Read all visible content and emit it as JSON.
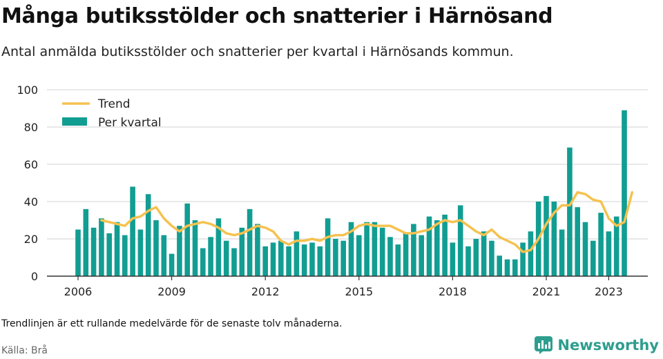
{
  "header": {
    "title": "Många butiksstölder och snatterier i Härnösand",
    "subtitle": "Antal anmälda butiksstölder och snatterier per kvartal i Härnösands kommun."
  },
  "footer": {
    "note": "Trendlinjen är ett rullande medelvärde för de senaste tolv månaderna.",
    "source": "Källa: Brå",
    "brand": "Newsworthy"
  },
  "colors": {
    "bar": "#129d92",
    "trend": "#f5c24f",
    "grid": "#d9d9d9",
    "text": "#222222"
  },
  "chart_data": {
    "type": "bar",
    "title": "",
    "xlabel": "",
    "ylabel": "",
    "ylim": [
      0,
      100
    ],
    "y_ticks": [
      0,
      20,
      40,
      60,
      80,
      100
    ],
    "x_ticks": [
      "2006",
      "2009",
      "2012",
      "2015",
      "2018",
      "2021",
      "2023"
    ],
    "legend_position": "top-left",
    "grid": true,
    "categories": [
      "2006 Q1",
      "2006 Q2",
      "2006 Q3",
      "2006 Q4",
      "2007 Q1",
      "2007 Q2",
      "2007 Q3",
      "2007 Q4",
      "2008 Q1",
      "2008 Q2",
      "2008 Q3",
      "2008 Q4",
      "2009 Q1",
      "2009 Q2",
      "2009 Q3",
      "2009 Q4",
      "2010 Q1",
      "2010 Q2",
      "2010 Q3",
      "2010 Q4",
      "2011 Q1",
      "2011 Q2",
      "2011 Q3",
      "2011 Q4",
      "2012 Q1",
      "2012 Q2",
      "2012 Q3",
      "2012 Q4",
      "2013 Q1",
      "2013 Q2",
      "2013 Q3",
      "2013 Q4",
      "2014 Q1",
      "2014 Q2",
      "2014 Q3",
      "2014 Q4",
      "2015 Q1",
      "2015 Q2",
      "2015 Q3",
      "2015 Q4",
      "2016 Q1",
      "2016 Q2",
      "2016 Q3",
      "2016 Q4",
      "2017 Q1",
      "2017 Q2",
      "2017 Q3",
      "2017 Q4",
      "2018 Q1",
      "2018 Q2",
      "2018 Q3",
      "2018 Q4",
      "2019 Q1",
      "2019 Q2",
      "2019 Q3",
      "2019 Q4",
      "2020 Q1",
      "2020 Q2",
      "2020 Q3",
      "2020 Q4",
      "2021 Q1",
      "2021 Q2",
      "2021 Q3",
      "2021 Q4",
      "2022 Q1",
      "2022 Q2",
      "2022 Q3",
      "2022 Q4",
      "2023 Q1",
      "2023 Q2",
      "2023 Q3",
      "2023 Q4"
    ],
    "series": [
      {
        "name": "Per kvartal",
        "kind": "bar",
        "values": [
          25,
          36,
          26,
          31,
          23,
          29,
          22,
          48,
          25,
          44,
          30,
          22,
          12,
          27,
          39,
          30,
          15,
          21,
          31,
          19,
          15,
          26,
          36,
          28,
          16,
          18,
          19,
          16,
          24,
          17,
          18,
          16,
          31,
          20,
          19,
          29,
          22,
          29,
          29,
          26,
          21,
          17,
          23,
          28,
          22,
          32,
          30,
          33,
          18,
          38,
          16,
          20,
          24,
          19,
          11,
          9,
          9,
          18,
          24,
          40,
          43,
          40,
          25,
          69,
          37,
          29,
          19,
          34,
          24,
          32,
          89,
          0
        ]
      },
      {
        "name": "Trend",
        "kind": "line",
        "values": [
          null,
          null,
          null,
          30,
          29,
          28,
          27,
          31,
          32,
          35,
          37,
          31,
          27,
          24,
          27,
          28,
          29,
          28,
          26,
          23,
          22,
          23,
          25,
          27,
          26,
          24,
          19,
          17,
          19,
          19,
          20,
          19,
          21,
          22,
          22,
          24,
          27,
          28,
          27,
          27,
          27,
          25,
          23,
          23,
          24,
          25,
          28,
          30,
          29,
          30,
          27,
          24,
          22,
          25,
          21,
          19,
          17,
          13,
          14,
          20,
          28,
          34,
          38,
          38,
          45,
          44,
          41,
          40,
          31,
          27,
          29,
          45
        ]
      }
    ]
  }
}
